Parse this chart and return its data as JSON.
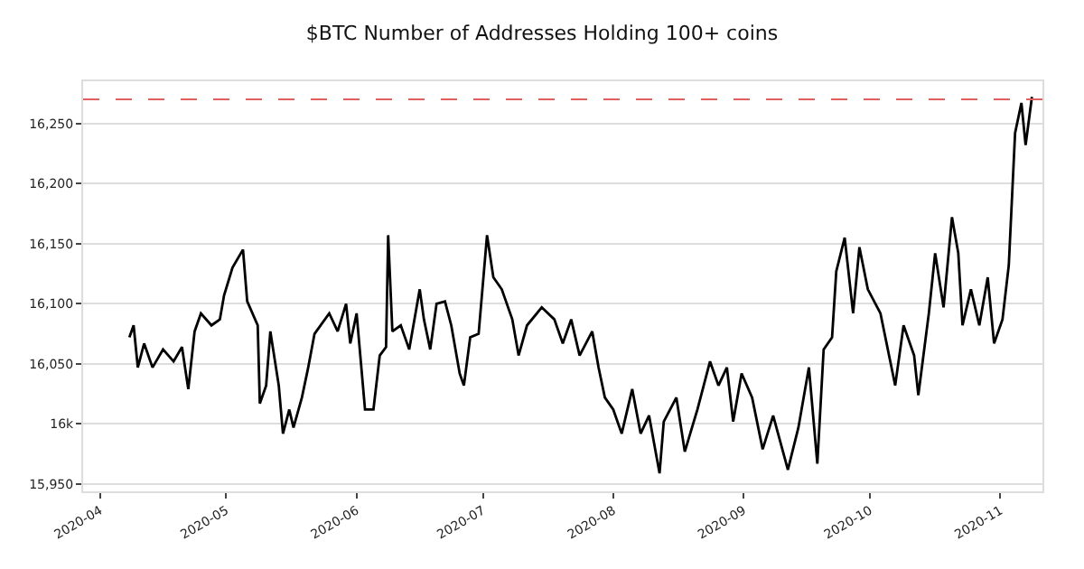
{
  "chart_data": {
    "type": "line",
    "title": "$BTC Number of Addresses Holding 100+ coins",
    "x": [
      "2020-04-08T00:00",
      "2020-04-09T00:00",
      "2020-04-10T00:00",
      "2020-04-11T12:00",
      "2020-04-13T12:00",
      "2020-04-16T00:00",
      "2020-04-18T12:00",
      "2020-04-20T12:00",
      "2020-04-22T00:00",
      "2020-04-23T12:00",
      "2020-04-25T00:00",
      "2020-04-27T12:00",
      "2020-04-29T12:00",
      "2020-04-30T12:00",
      "2020-05-02T12:00",
      "2020-05-05T00:00",
      "2020-05-06T00:00",
      "2020-05-08T12:00",
      "2020-05-09T00:00",
      "2020-05-10T12:00",
      "2020-05-11T12:00",
      "2020-05-13T12:00",
      "2020-05-14T12:00",
      "2020-05-16T00:00",
      "2020-05-17T00:00",
      "2020-05-19T00:00",
      "2020-05-20T12:00",
      "2020-05-22T00:00",
      "2020-05-25T12:00",
      "2020-05-27T12:00",
      "2020-05-29T12:00",
      "2020-05-30T12:00",
      "2020-06-01T00:00",
      "2020-06-03T00:00",
      "2020-06-05T00:00",
      "2020-06-06T12:00",
      "2020-06-08T00:00",
      "2020-06-08T12:00",
      "2020-06-09T12:00",
      "2020-06-11T12:00",
      "2020-06-13T12:00",
      "2020-06-16T00:00",
      "2020-06-17T00:00",
      "2020-06-18T12:00",
      "2020-06-20T00:00",
      "2020-06-22T00:00",
      "2020-06-23T12:00",
      "2020-06-25T12:00",
      "2020-06-26T12:00",
      "2020-06-28T00:00",
      "2020-06-30T00:00",
      "2020-07-02T00:00",
      "2020-07-03T12:00",
      "2020-07-05T12:00",
      "2020-07-08T00:00",
      "2020-07-09T12:00",
      "2020-07-11T12:00",
      "2020-07-15T00:00",
      "2020-07-18T00:00",
      "2020-07-20T00:00",
      "2020-07-22T00:00",
      "2020-07-24T00:00",
      "2020-07-27T00:00",
      "2020-07-28T12:00",
      "2020-07-30T00:00",
      "2020-08-01T00:00",
      "2020-08-03T00:00",
      "2020-08-05T12:00",
      "2020-08-07T12:00",
      "2020-08-09T12:00",
      "2020-08-12T00:00",
      "2020-08-13T00:00",
      "2020-08-16T00:00",
      "2020-08-18T00:00",
      "2020-08-21T00:00",
      "2020-08-24T00:00",
      "2020-08-26T00:00",
      "2020-08-28T00:00",
      "2020-08-29T12:00",
      "2020-08-31T12:00",
      "2020-09-03T00:00",
      "2020-09-05T12:00",
      "2020-09-08T00:00",
      "2020-09-11T12:00",
      "2020-09-14T00:00",
      "2020-09-16T12:00",
      "2020-09-18T12:00",
      "2020-09-20T00:00",
      "2020-09-22T00:00",
      "2020-09-23T00:00",
      "2020-09-25T00:00",
      "2020-09-27T00:00",
      "2020-09-28T12:00",
      "2020-09-30T12:00",
      "2020-10-03T12:00",
      "2020-10-07T00:00",
      "2020-10-09T00:00",
      "2020-10-11T12:00",
      "2020-10-12T12:00",
      "2020-10-15T00:00",
      "2020-10-16T12:00",
      "2020-10-18T12:00",
      "2020-10-20T12:00",
      "2020-10-22T00:00",
      "2020-10-23T00:00",
      "2020-10-25T00:00",
      "2020-10-27T00:00",
      "2020-10-29T00:00",
      "2020-10-30T12:00",
      "2020-11-01T12:00",
      "2020-11-03T00:00",
      "2020-11-04T12:00",
      "2020-11-06T00:00",
      "2020-11-07T00:00",
      "2020-11-08T12:00"
    ],
    "series": [
      {
        "color": "#000000",
        "values": [
          16072,
          16082,
          16047,
          16067,
          16047,
          16062,
          16052,
          16064,
          16029,
          16077,
          16092,
          16082,
          16087,
          16107,
          16130,
          16145,
          16102,
          16082,
          16017,
          16032,
          16077,
          16032,
          15992,
          16012,
          15997,
          16022,
          16047,
          16075,
          16092,
          16077,
          16100,
          16067,
          16092,
          16012,
          16012,
          16057,
          16064,
          16157,
          16077,
          16082,
          16062,
          16112,
          16087,
          16062,
          16100,
          16102,
          16082,
          16042,
          16032,
          16072,
          16075,
          16157,
          16122,
          16112,
          16087,
          16057,
          16082,
          16097,
          16087,
          16067,
          16087,
          16057,
          16077,
          16047,
          16022,
          16012,
          15992,
          16029,
          15992,
          16007,
          15959,
          16002,
          16022,
          15977,
          16012,
          16052,
          16032,
          16047,
          16002,
          16042,
          16022,
          15979,
          16007,
          15962,
          15997,
          16047,
          15967,
          16062,
          16072,
          16127,
          16155,
          16092,
          16147,
          16112,
          16092,
          16032,
          16082,
          16057,
          16024,
          16092,
          16142,
          16097,
          16172,
          16142,
          16082,
          16112,
          16082,
          16122,
          16067,
          16087,
          16132,
          16242,
          16267,
          16232,
          16272
        ]
      }
    ],
    "xlim": [
      "2020-03-28",
      "2020-11-11"
    ],
    "xticks": [
      {
        "value": "2020-04-01",
        "label": "2020-04"
      },
      {
        "value": "2020-05-01",
        "label": "2020-05"
      },
      {
        "value": "2020-06-01",
        "label": "2020-06"
      },
      {
        "value": "2020-07-01",
        "label": "2020-07"
      },
      {
        "value": "2020-08-01",
        "label": "2020-08"
      },
      {
        "value": "2020-09-01",
        "label": "2020-09"
      },
      {
        "value": "2020-10-01",
        "label": "2020-10"
      },
      {
        "value": "2020-11-01",
        "label": "2020-11"
      }
    ],
    "ylim": [
      15944,
      16285
    ],
    "yticks": [
      {
        "value": 15950,
        "label": "15,950"
      },
      {
        "value": 16000,
        "label": "16k"
      },
      {
        "value": 16050,
        "label": "16,050"
      },
      {
        "value": 16100,
        "label": "16,100"
      },
      {
        "value": 16150,
        "label": "16,150"
      },
      {
        "value": 16200,
        "label": "16,200"
      },
      {
        "value": 16250,
        "label": "16,250"
      }
    ],
    "ref_lines": [
      {
        "axis": "y",
        "value": 16270,
        "color": "#e06060",
        "line_style": "dashed"
      }
    ],
    "grid": "y",
    "line_style": "solid",
    "marker": "none"
  }
}
